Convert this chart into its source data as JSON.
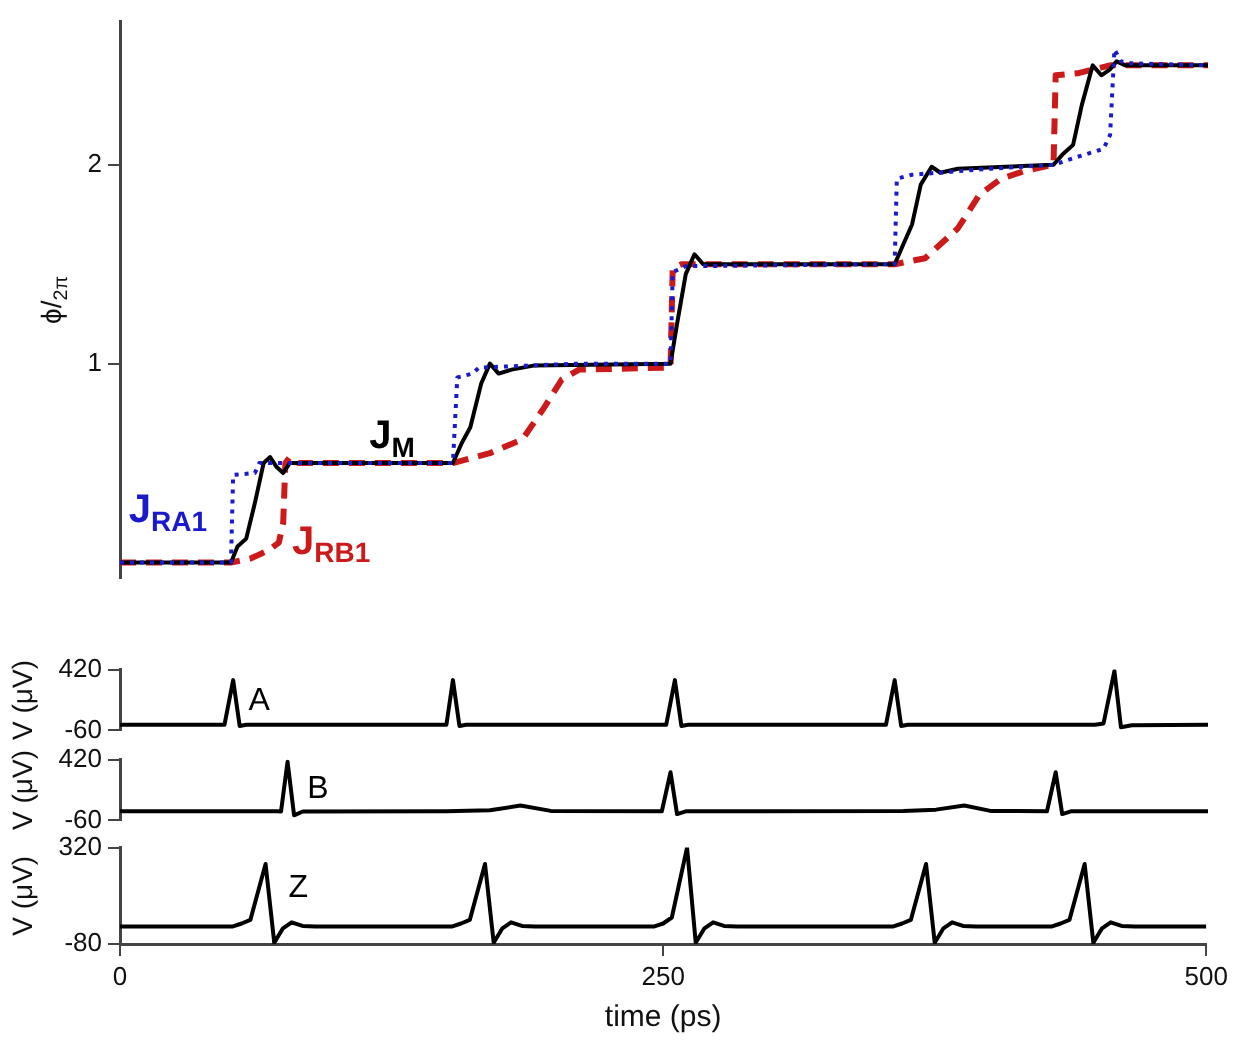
{
  "chart_data": [
    {
      "type": "line",
      "ylabel": "ϕ/$_{2π}$",
      "xlim": [
        0,
        500
      ],
      "ylim": [
        -0.08,
        2.72
      ],
      "yticks": [
        1,
        2
      ],
      "tick_labels": "y",
      "legend": false,
      "series": [
        {
          "name": "J$_{RA1}$",
          "color": "#1a1acc",
          "line_style": "dotted",
          "x": [
            0,
            51,
            52,
            62,
            64,
            153,
            155,
            162,
            165,
            210,
            253,
            254,
            260,
            356,
            357,
            364,
            400,
            429,
            440,
            452,
            455,
            457,
            460,
            465,
            500
          ],
          "values": [
            0,
            0,
            0.44,
            0.45,
            0.5,
            0.5,
            0.93,
            0.95,
            0.98,
            1.0,
            1.0,
            1.46,
            1.49,
            1.5,
            1.93,
            1.95,
            1.98,
            2.0,
            2.04,
            2.08,
            2.15,
            2.58,
            2.52,
            2.51,
            2.5
          ]
        },
        {
          "name": "J$_{M}$",
          "color": "#000000",
          "line_style": "solid",
          "x": [
            0,
            51,
            54,
            58,
            62,
            66,
            69,
            72,
            75,
            78,
            153,
            157,
            161,
            166,
            170,
            174,
            180,
            190,
            253,
            256,
            260,
            264,
            268,
            300,
            356,
            360,
            364,
            368,
            373,
            377,
            385,
            429,
            433,
            438,
            442,
            447,
            451,
            455,
            458,
            462,
            500
          ],
          "values": [
            0,
            0,
            0.08,
            0.12,
            0.3,
            0.5,
            0.53,
            0.48,
            0.45,
            0.5,
            0.5,
            0.6,
            0.68,
            0.9,
            1.0,
            0.95,
            0.97,
            0.99,
            1.0,
            1.2,
            1.45,
            1.55,
            1.5,
            1.5,
            1.5,
            1.6,
            1.7,
            1.9,
            1.99,
            1.96,
            1.98,
            2.0,
            2.05,
            2.1,
            2.3,
            2.5,
            2.45,
            2.48,
            2.52,
            2.5,
            2.5
          ]
        },
        {
          "name": "J$_{RB1}$",
          "color": "#cc1a1a",
          "line_style": "dashed",
          "x": [
            0,
            51,
            60,
            68,
            73,
            75,
            76,
            78,
            82,
            153,
            170,
            185,
            195,
            203,
            211,
            253,
            254,
            258,
            356,
            370,
            385,
            395,
            405,
            416,
            429,
            430,
            440,
            455,
            500
          ],
          "values": [
            0,
            0,
            0.02,
            0.06,
            0.1,
            0.2,
            0.5,
            0.53,
            0.5,
            0.5,
            0.55,
            0.62,
            0.78,
            0.92,
            0.97,
            0.98,
            1.48,
            1.5,
            1.5,
            1.53,
            1.68,
            1.85,
            1.93,
            1.97,
            2.0,
            2.45,
            2.46,
            2.5,
            2.5
          ]
        }
      ]
    },
    {
      "type": "line",
      "ylabel": "V (μV)",
      "xlim": [
        0,
        500
      ],
      "ylim": [
        -60,
        420
      ],
      "yticks": [
        -60,
        420
      ],
      "tick_labels": "y",
      "legend": false,
      "series": [
        {
          "name": "A",
          "color": "#000000",
          "line_style": "solid",
          "x": [
            0,
            48,
            52,
            55,
            58,
            150,
            153,
            156,
            159,
            251,
            255,
            258,
            261,
            352,
            356,
            359,
            362,
            448,
            452,
            457,
            460,
            465,
            500
          ],
          "values": [
            -16,
            -16,
            337,
            -25,
            -16,
            -16,
            337,
            -25,
            -16,
            -16,
            337,
            -25,
            -16,
            -16,
            337,
            -25,
            -16,
            -16,
            -5,
            409,
            -35,
            -20,
            -16
          ]
        }
      ]
    },
    {
      "type": "line",
      "ylabel": "V (μV)",
      "xlim": [
        0,
        500
      ],
      "ylim": [
        -60,
        420
      ],
      "yticks": [
        -60,
        420
      ],
      "tick_labels": "y",
      "legend": false,
      "series": [
        {
          "name": "B",
          "color": "#000000",
          "line_style": "solid",
          "x": [
            0,
            72,
            74,
            77,
            80,
            84,
            150,
            170,
            184,
            198,
            249,
            253,
            256,
            260,
            360,
            375,
            388,
            400,
            426,
            430,
            433,
            437,
            500
          ],
          "values": [
            12,
            12,
            10,
            403,
            -20,
            10,
            12,
            20,
            57,
            15,
            12,
            320,
            -10,
            12,
            14,
            25,
            57,
            15,
            12,
            320,
            -10,
            12,
            12
          ]
        }
      ]
    },
    {
      "type": "line",
      "ylabel": "V (μV)",
      "xlabel": "time (ps)",
      "xlim": [
        0,
        500
      ],
      "xticks": [
        0,
        250,
        500
      ],
      "ylim": [
        -80,
        320
      ],
      "yticks": [
        -80,
        320
      ],
      "legend": false,
      "series": [
        {
          "name": "Z",
          "color": "#000000",
          "line_style": "solid",
          "x": [
            0,
            52,
            56,
            60,
            67,
            71,
            75,
            79,
            84,
            90,
            153,
            157,
            161,
            168,
            172,
            176,
            180,
            185,
            191,
            246,
            250,
            254,
            261,
            265,
            269,
            273,
            278,
            284,
            356,
            360,
            364,
            371,
            375,
            379,
            383,
            388,
            394,
            429,
            433,
            437,
            444,
            448,
            452,
            456,
            461,
            467,
            500
          ],
          "values": [
            -7,
            -7,
            5,
            20,
            252,
            -75,
            -15,
            10,
            -5,
            -7,
            -7,
            5,
            20,
            252,
            -75,
            -15,
            10,
            -5,
            -7,
            -7,
            5,
            30,
            320,
            -75,
            -15,
            10,
            -5,
            -7,
            -7,
            5,
            20,
            252,
            -75,
            -15,
            10,
            -5,
            -7,
            -7,
            5,
            20,
            252,
            -75,
            -15,
            10,
            -5,
            -7,
            -7
          ]
        }
      ]
    }
  ]
}
